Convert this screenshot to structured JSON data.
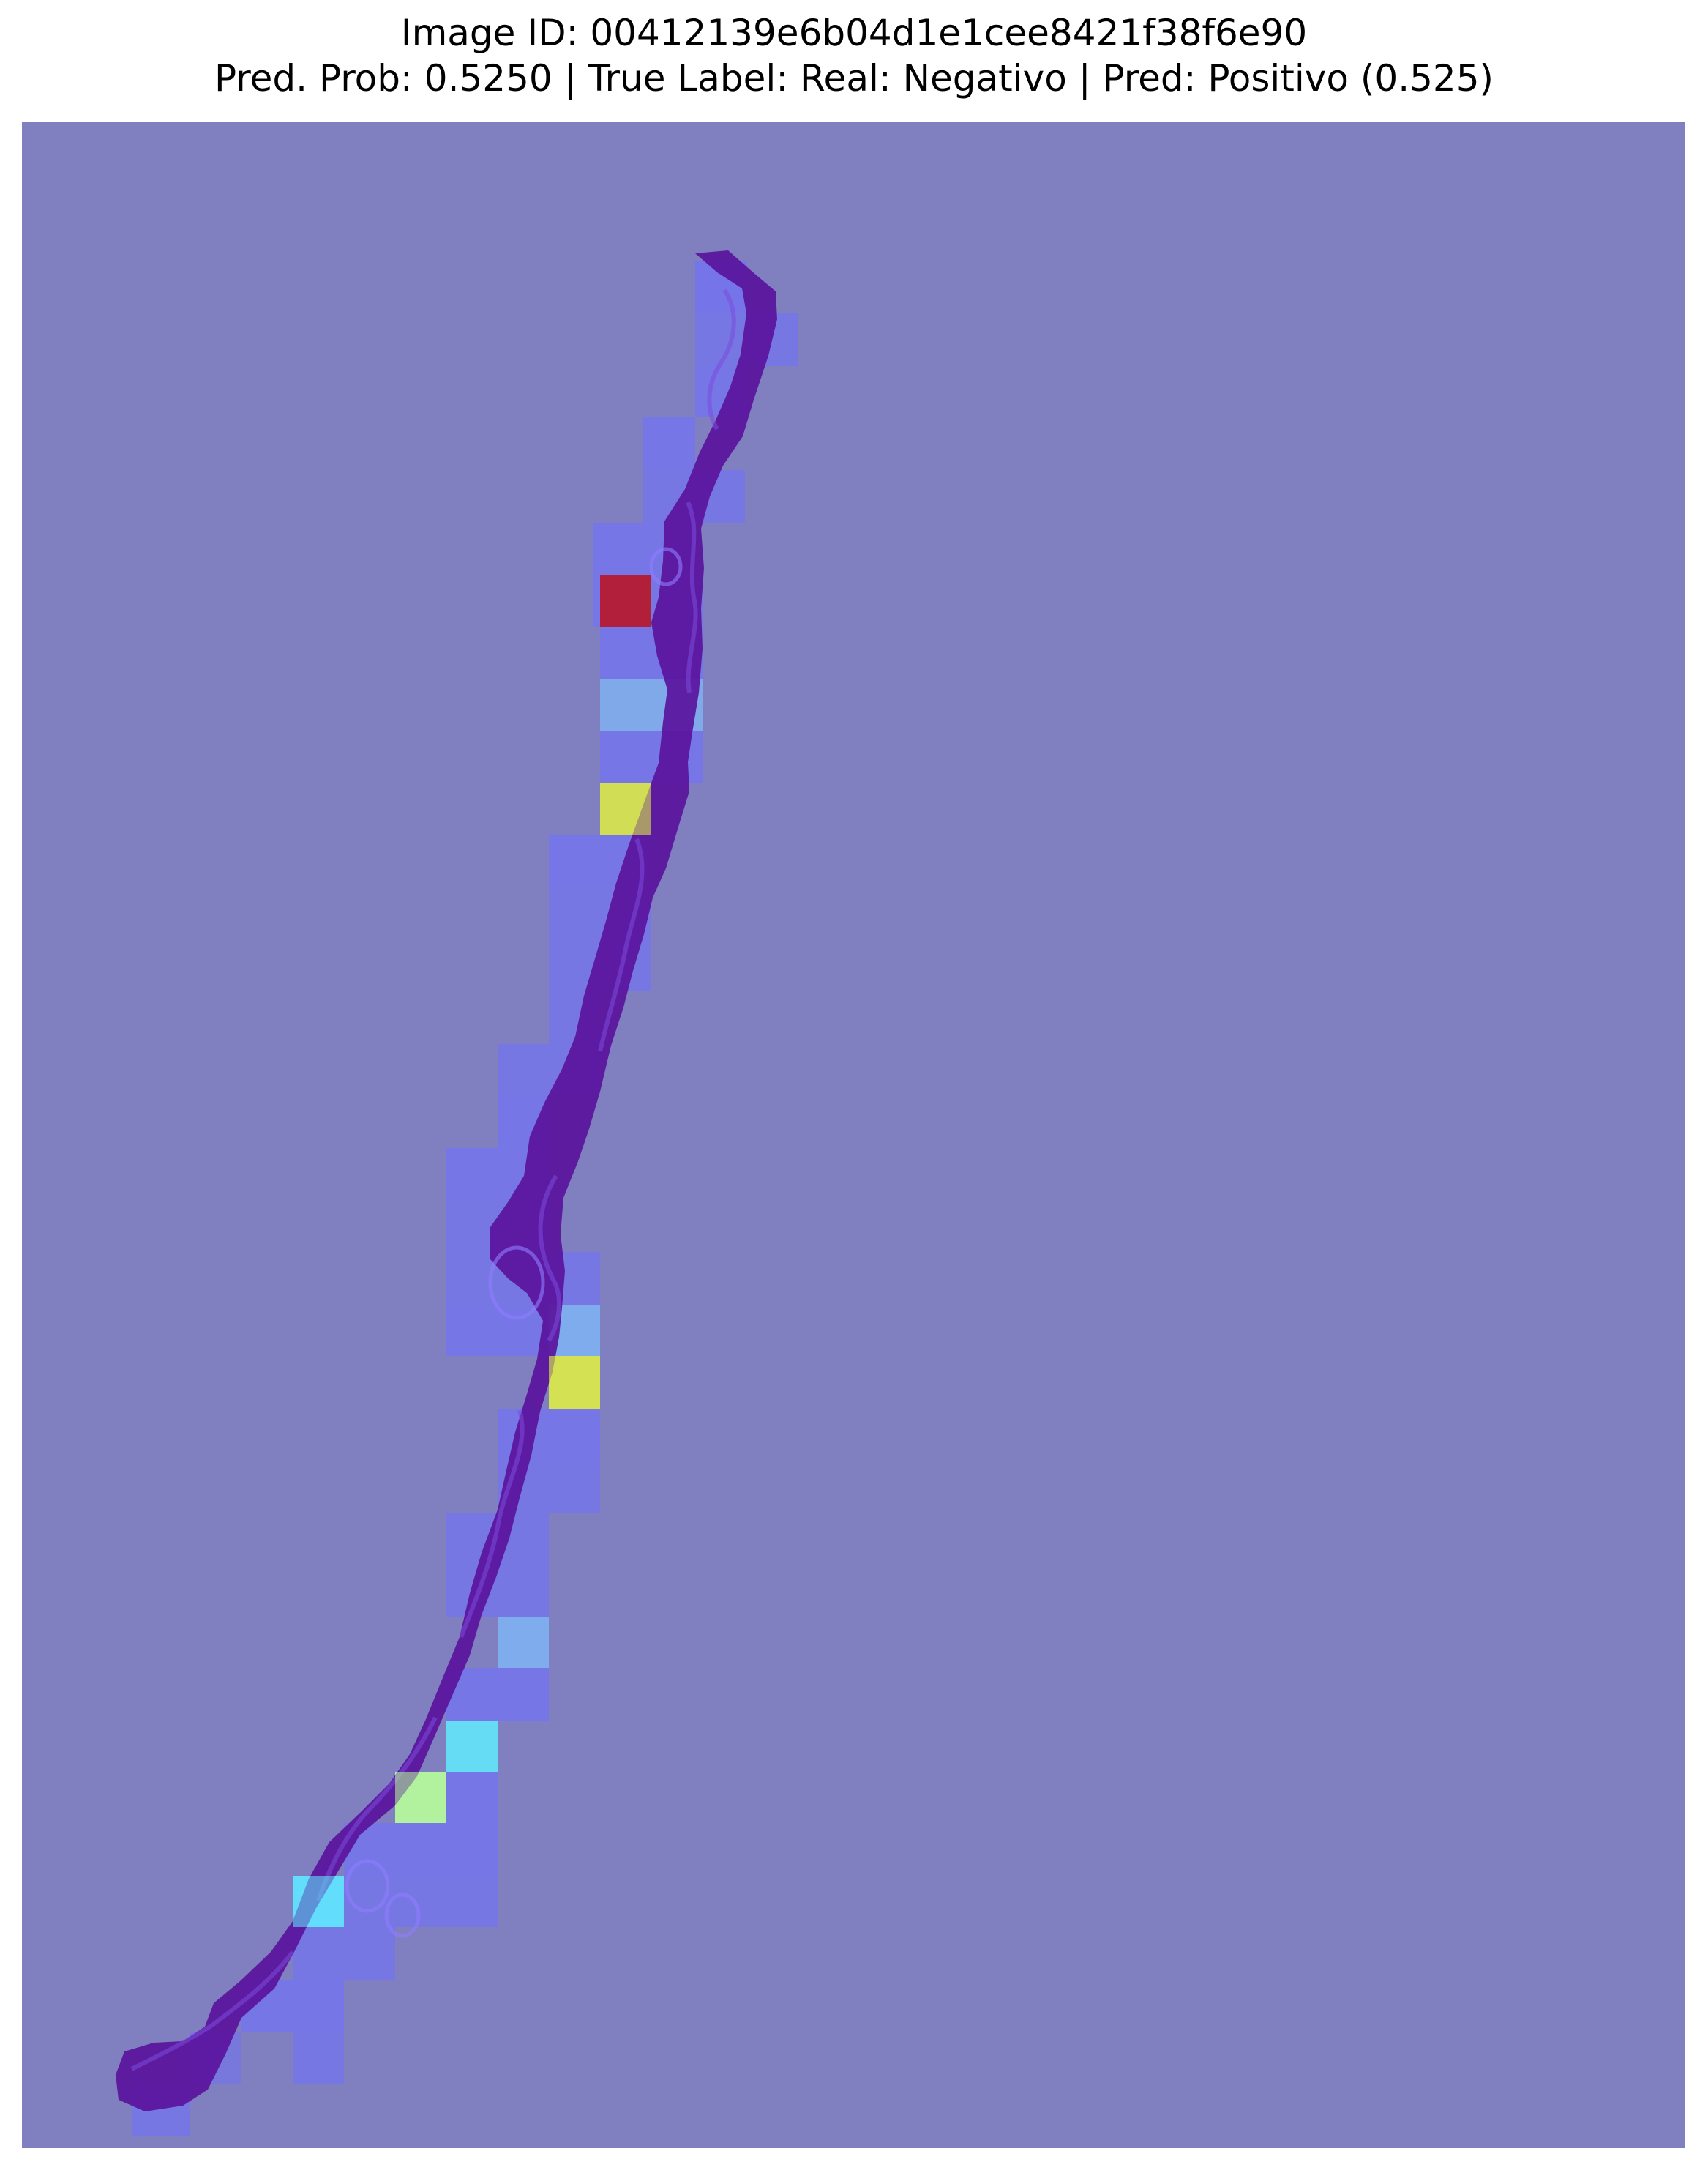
{
  "figure": {
    "title_line_1": "Image ID: 00412139e6b04d1e1cee8421f38f6e90",
    "title_line_2": "Pred. Prob: 0.5250 | True Label: Real: Negativo | Pred: Positivo (0.525)"
  },
  "colors": {
    "background": "#8080c0",
    "tissue": "#5a139c",
    "heat_low": "#6f6fff",
    "heat_cyan": "#5ff0ff",
    "heat_yellow": "#d9e84a",
    "heat_red": "#b81628"
  }
}
